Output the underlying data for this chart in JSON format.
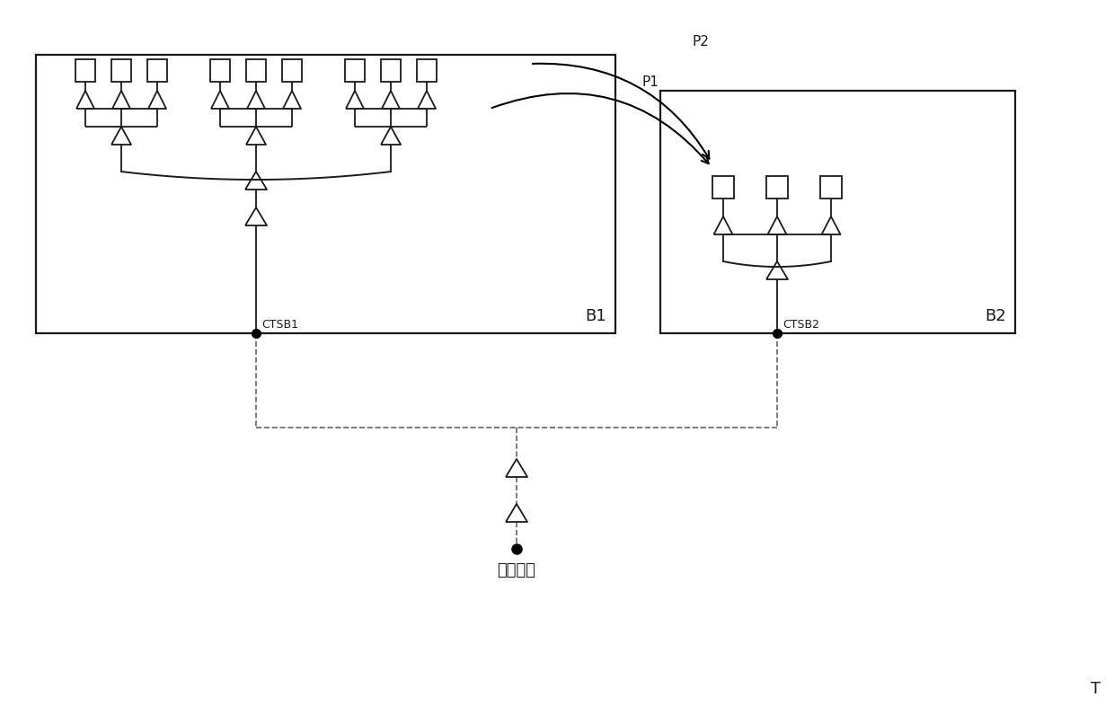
{
  "bg_color": "#ffffff",
  "line_color": "#1a1a1a",
  "dashed_color": "#666666",
  "label_B1": "B1",
  "label_B2": "B2",
  "label_CTSB1": "CTSB1",
  "label_CTSB2": "CTSB2",
  "label_root": "时钒根部",
  "label_P1": "P1",
  "label_P2": "P2",
  "label_T": "T"
}
